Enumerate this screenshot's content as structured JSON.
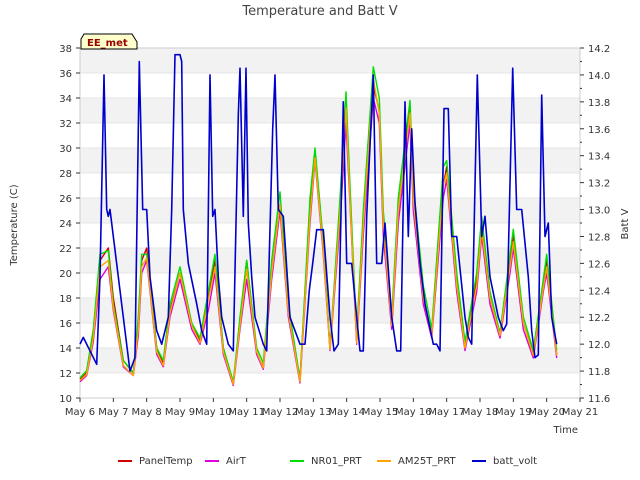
{
  "chart_data": {
    "type": "line",
    "title": "Temperature and Batt V",
    "xlabel": "Time",
    "ylabel": "Temperature (C)",
    "y2label": "Batt V",
    "station_label": "EE_met",
    "xlim": [
      6,
      21
    ],
    "ylim": [
      10,
      38
    ],
    "y2lim": [
      11.6,
      14.2
    ],
    "x_ticks": [
      6,
      7,
      8,
      9,
      10,
      11,
      12,
      13,
      14,
      15,
      16,
      17,
      18,
      19,
      20,
      21
    ],
    "x_tick_labels": [
      "May 6",
      "May 7",
      "May 8",
      "May 9",
      "May 10",
      "May 11",
      "May 12",
      "May 13",
      "May 14",
      "May 15",
      "May 16",
      "May 17",
      "May 18",
      "May 19",
      "May 20",
      "May 21"
    ],
    "y_ticks": [
      10,
      12,
      14,
      16,
      18,
      20,
      22,
      24,
      26,
      28,
      30,
      32,
      34,
      36,
      38
    ],
    "y2_ticks": [
      "11.6",
      "11.8",
      "12.0",
      "12.2",
      "12.4",
      "12.6",
      "12.8",
      "13.0",
      "13.2",
      "13.4",
      "13.6",
      "13.8",
      "14.0",
      "14.2"
    ],
    "legend_position": "bottom",
    "series": [
      {
        "name": "PanelTemp",
        "color": "#cc0000",
        "axis": "left",
        "x": [
          6.0,
          6.2,
          6.4,
          6.6,
          6.85,
          7.0,
          7.3,
          7.6,
          7.75,
          7.85,
          8.0,
          8.3,
          8.5,
          8.7,
          9.0,
          9.35,
          9.6,
          9.85,
          10.05,
          10.3,
          10.6,
          10.8,
          11.0,
          11.3,
          11.5,
          11.75,
          12.0,
          12.25,
          12.6,
          12.9,
          13.05,
          13.3,
          13.5,
          13.8,
          13.98,
          14.1,
          14.3,
          14.5,
          14.8,
          14.98,
          15.1,
          15.35,
          15.55,
          15.9,
          16.0,
          16.3,
          16.55,
          16.9,
          17.0,
          17.3,
          17.55,
          17.9,
          18.05,
          18.3,
          18.6,
          18.9,
          19.0,
          19.3,
          19.6,
          19.9,
          20.0,
          20.3
        ],
        "y": [
          11.5,
          12.0,
          15.0,
          21.0,
          22.0,
          18.0,
          13.0,
          12.0,
          16.0,
          21.0,
          22.0,
          14.0,
          12.8,
          17.0,
          20.0,
          16.0,
          14.5,
          18.0,
          21.0,
          14.0,
          11.2,
          16.0,
          21.0,
          13.5,
          12.5,
          20.0,
          25.5,
          17.0,
          11.5,
          25.0,
          29.5,
          22.0,
          14.0,
          25.0,
          33.0,
          26.0,
          14.5,
          24.0,
          35.0,
          33.0,
          24.0,
          16.0,
          25.0,
          33.0,
          26.0,
          18.0,
          15.0,
          27.0,
          28.5,
          19.0,
          14.0,
          19.5,
          24.0,
          18.0,
          15.0,
          21.0,
          23.0,
          16.0,
          13.5,
          19.0,
          21.0,
          13.5
        ]
      },
      {
        "name": "AirT",
        "color": "#dd00dd",
        "axis": "left",
        "x": [
          6.0,
          6.2,
          6.4,
          6.6,
          6.85,
          7.0,
          7.3,
          7.6,
          7.75,
          7.85,
          8.0,
          8.3,
          8.5,
          8.7,
          9.0,
          9.35,
          9.6,
          9.85,
          10.05,
          10.3,
          10.6,
          10.8,
          11.0,
          11.3,
          11.5,
          11.75,
          12.0,
          12.25,
          12.6,
          12.9,
          13.05,
          13.3,
          13.5,
          13.8,
          13.98,
          14.1,
          14.3,
          14.5,
          14.8,
          14.98,
          15.1,
          15.35,
          15.55,
          15.9,
          16.0,
          16.3,
          16.55,
          16.9,
          17.0,
          17.3,
          17.55,
          17.9,
          18.05,
          18.3,
          18.6,
          18.9,
          19.0,
          19.3,
          19.6,
          19.9,
          20.0,
          20.3
        ],
        "y": [
          11.3,
          11.8,
          14.5,
          19.5,
          20.5,
          17.0,
          12.5,
          11.8,
          15.0,
          20.0,
          21.0,
          13.5,
          12.5,
          16.5,
          19.5,
          15.5,
          14.3,
          17.0,
          20.0,
          13.5,
          11.0,
          15.5,
          19.5,
          13.5,
          12.3,
          19.5,
          25.0,
          16.5,
          11.2,
          24.0,
          29.0,
          21.5,
          13.8,
          24.0,
          32.0,
          25.5,
          14.3,
          23.0,
          34.0,
          32.0,
          23.0,
          15.5,
          24.0,
          32.0,
          25.0,
          17.5,
          14.8,
          26.0,
          27.5,
          18.5,
          13.8,
          18.5,
          23.0,
          17.5,
          14.8,
          20.0,
          22.0,
          15.5,
          13.2,
          18.5,
          20.0,
          13.2
        ]
      },
      {
        "name": "NR01_PRT",
        "color": "#00dd00",
        "axis": "left",
        "x": [
          6.0,
          6.2,
          6.4,
          6.6,
          6.85,
          7.0,
          7.3,
          7.6,
          7.75,
          7.85,
          8.0,
          8.3,
          8.5,
          8.7,
          9.0,
          9.35,
          9.6,
          9.85,
          10.05,
          10.3,
          10.6,
          10.8,
          11.0,
          11.3,
          11.5,
          11.75,
          12.0,
          12.25,
          12.6,
          12.9,
          13.05,
          13.3,
          13.5,
          13.8,
          13.98,
          14.1,
          14.3,
          14.5,
          14.8,
          14.98,
          15.1,
          15.35,
          15.55,
          15.9,
          16.0,
          16.3,
          16.55,
          16.9,
          17.0,
          17.3,
          17.55,
          17.9,
          18.05,
          18.3,
          18.6,
          18.9,
          19.0,
          19.3,
          19.6,
          19.9,
          20.0,
          20.3
        ],
        "y": [
          11.6,
          12.2,
          15.5,
          21.5,
          21.8,
          17.5,
          13.0,
          12.0,
          16.5,
          21.5,
          21.5,
          14.0,
          13.0,
          17.5,
          20.5,
          16.0,
          14.8,
          18.5,
          21.5,
          14.0,
          11.3,
          16.5,
          21.0,
          14.0,
          12.8,
          21.0,
          26.5,
          17.5,
          11.5,
          26.0,
          30.0,
          22.5,
          14.0,
          26.0,
          34.5,
          27.0,
          15.0,
          25.0,
          36.5,
          34.0,
          25.0,
          16.5,
          26.0,
          33.8,
          27.0,
          19.0,
          15.5,
          28.5,
          29.0,
          20.0,
          14.5,
          20.0,
          24.5,
          18.5,
          15.2,
          21.5,
          23.5,
          16.5,
          13.8,
          19.5,
          21.5,
          13.8
        ]
      },
      {
        "name": "AM25T_PRT",
        "color": "#ffa500",
        "axis": "left",
        "x": [
          6.0,
          6.2,
          6.4,
          6.6,
          6.85,
          7.0,
          7.3,
          7.6,
          7.75,
          7.85,
          8.0,
          8.3,
          8.5,
          8.7,
          9.0,
          9.35,
          9.6,
          9.85,
          10.05,
          10.3,
          10.6,
          10.8,
          11.0,
          11.3,
          11.5,
          11.75,
          12.0,
          12.25,
          12.6,
          12.9,
          13.05,
          13.3,
          13.5,
          13.8,
          13.98,
          14.1,
          14.3,
          14.5,
          14.8,
          14.98,
          15.1,
          15.35,
          15.55,
          15.9,
          16.0,
          16.3,
          16.55,
          16.9,
          17.0,
          17.3,
          17.55,
          17.9,
          18.05,
          18.3,
          18.6,
          18.9,
          19.0,
          19.3,
          19.6,
          19.9,
          20.0,
          20.3
        ],
        "y": [
          11.4,
          11.9,
          14.8,
          20.5,
          21.0,
          17.2,
          12.6,
          11.8,
          15.5,
          20.5,
          21.2,
          13.7,
          12.6,
          16.8,
          20.0,
          15.8,
          14.4,
          17.8,
          20.5,
          13.7,
          11.1,
          15.8,
          20.3,
          13.7,
          12.4,
          20.0,
          25.5,
          16.8,
          11.3,
          24.5,
          29.2,
          21.8,
          13.9,
          24.8,
          33.2,
          25.8,
          14.4,
          23.8,
          35.5,
          32.8,
          23.8,
          15.8,
          25.0,
          32.8,
          25.8,
          18.0,
          15.0,
          27.0,
          28.0,
          19.0,
          14.0,
          19.0,
          23.5,
          18.0,
          15.0,
          20.5,
          22.5,
          16.0,
          13.4,
          18.8,
          20.5,
          13.4
        ]
      },
      {
        "name": "batt_volt",
        "color": "#0000cc",
        "axis": "right",
        "x": [
          6.0,
          6.1,
          6.5,
          6.6,
          6.72,
          6.8,
          6.85,
          6.9,
          7.15,
          7.3,
          7.5,
          7.65,
          7.78,
          7.88,
          8.0,
          8.1,
          8.3,
          8.45,
          8.65,
          8.75,
          8.85,
          9.0,
          9.05,
          9.1,
          9.25,
          9.5,
          9.65,
          9.8,
          9.9,
          9.98,
          10.05,
          10.15,
          10.25,
          10.45,
          10.6,
          10.75,
          10.8,
          10.9,
          10.98,
          11.05,
          11.15,
          11.25,
          11.5,
          11.6,
          11.78,
          11.85,
          11.95,
          12.1,
          12.3,
          12.6,
          12.75,
          12.88,
          12.98,
          13.1,
          13.3,
          13.5,
          13.62,
          13.75,
          13.9,
          14.0,
          14.15,
          14.3,
          14.4,
          14.5,
          14.6,
          14.8,
          14.9,
          15.05,
          15.15,
          15.35,
          15.5,
          15.62,
          15.75,
          15.85,
          15.95,
          16.05,
          16.2,
          16.35,
          16.6,
          16.7,
          16.8,
          16.92,
          17.05,
          17.15,
          17.3,
          17.55,
          17.65,
          17.75,
          17.92,
          18.05,
          18.15,
          18.3,
          18.55,
          18.7,
          18.8,
          18.98,
          19.1,
          19.25,
          19.45,
          19.55,
          19.65,
          19.75,
          19.85,
          19.95,
          20.05,
          20.15,
          20.3
        ],
        "y": [
          12.0,
          12.05,
          11.85,
          12.5,
          14.0,
          13.0,
          12.95,
          13.0,
          12.5,
          12.2,
          11.8,
          11.9,
          14.1,
          13.0,
          13.0,
          12.5,
          12.1,
          12.0,
          12.2,
          13.0,
          14.15,
          14.15,
          14.1,
          13.0,
          12.6,
          12.3,
          12.1,
          12.0,
          14.0,
          12.95,
          13.0,
          12.5,
          12.2,
          12.0,
          11.95,
          13.7,
          14.05,
          12.95,
          14.05,
          12.9,
          12.5,
          12.2,
          12.0,
          11.95,
          13.6,
          14.0,
          13.0,
          12.95,
          12.2,
          12.0,
          12.0,
          12.4,
          12.6,
          12.85,
          12.85,
          12.2,
          11.95,
          12.0,
          13.8,
          12.6,
          12.6,
          12.2,
          11.95,
          11.95,
          12.95,
          14.0,
          12.6,
          12.6,
          12.9,
          12.2,
          11.95,
          11.95,
          13.8,
          12.8,
          13.6,
          13.05,
          12.6,
          12.3,
          12.0,
          12.0,
          11.95,
          13.75,
          13.75,
          12.8,
          12.8,
          12.2,
          12.05,
          12.0,
          14.0,
          12.8,
          12.95,
          12.5,
          12.2,
          12.1,
          12.15,
          14.05,
          13.0,
          13.0,
          12.5,
          12.1,
          11.9,
          11.92,
          13.85,
          12.8,
          12.9,
          12.2,
          12.0
        ]
      }
    ]
  }
}
